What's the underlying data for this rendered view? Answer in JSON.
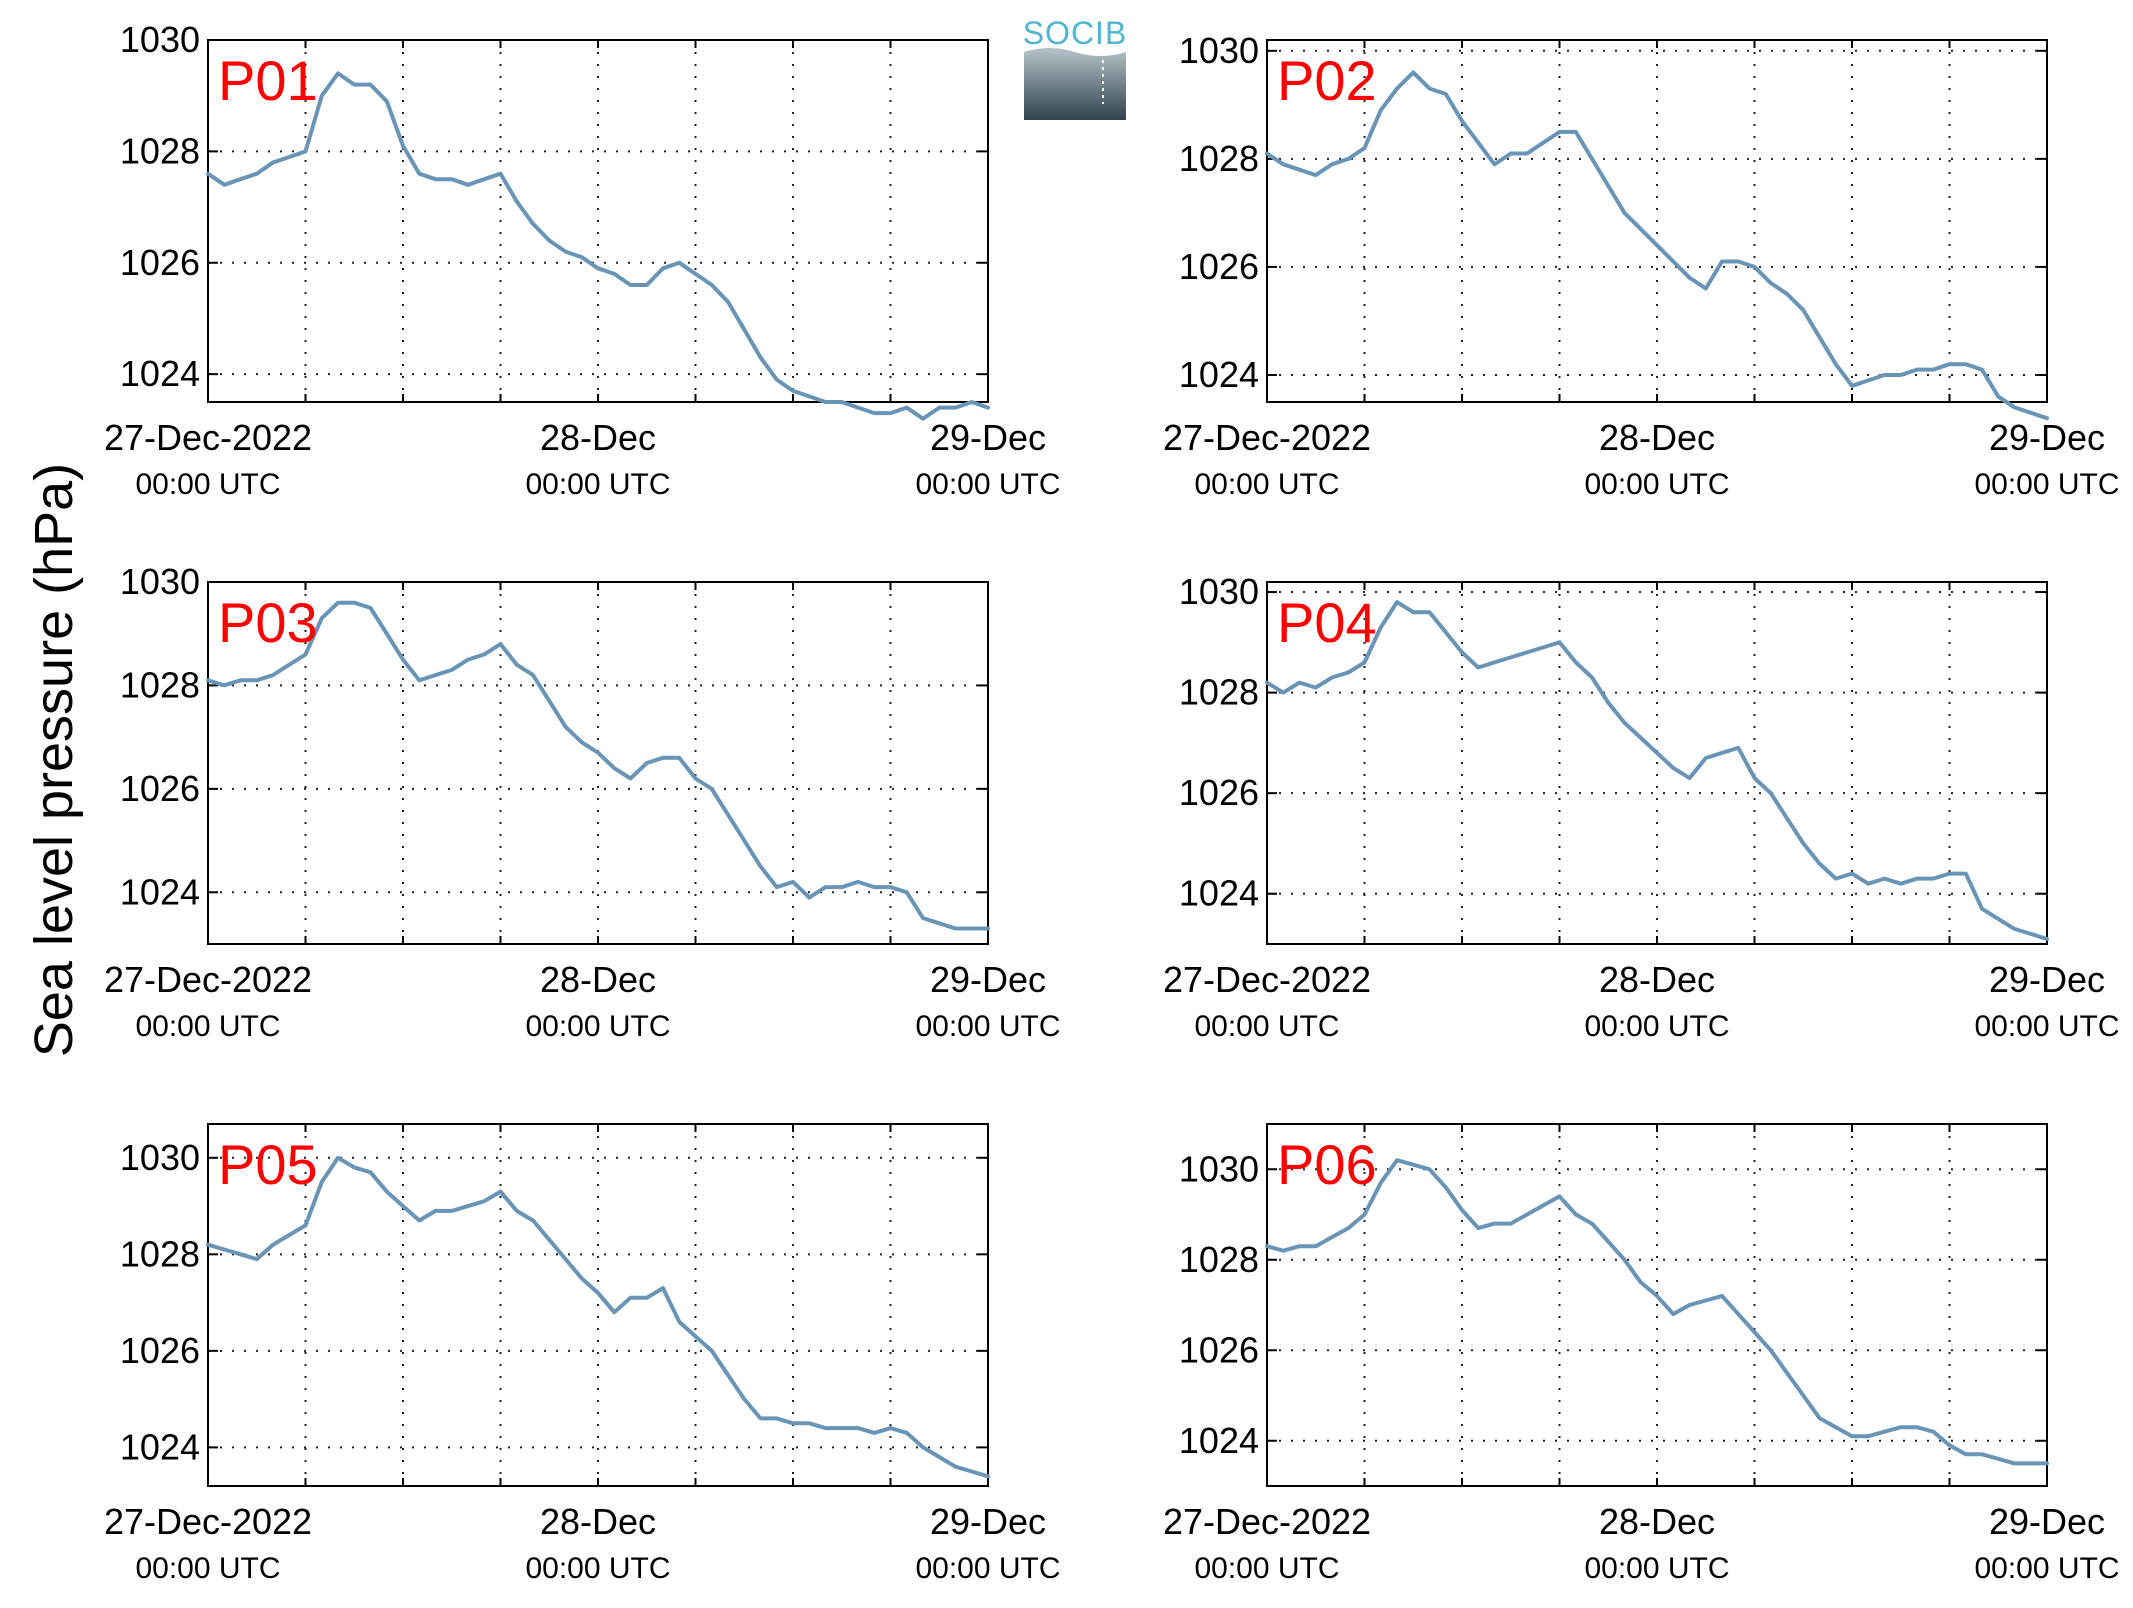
{
  "figure": {
    "ylabel": "Sea level pressure (hPa)",
    "logo_text": "SOCIB",
    "line_color": "#6a94b6",
    "label_color": "#ff0000",
    "x_axis": {
      "ticks": [
        0,
        24,
        48
      ],
      "tick_labels_top": [
        "27-Dec-2022",
        "28-Dec",
        "29-Dec"
      ],
      "tick_labels_bottom": [
        "00:00 UTC",
        "00:00 UTC",
        "00:00 UTC"
      ],
      "minor_grid_step_hours": 6,
      "range_hours": [
        0,
        48
      ]
    }
  },
  "chart_data": [
    {
      "type": "line",
      "title": "P01",
      "xlabel": "",
      "ylabel": "Sea level pressure (hPa)",
      "ylim": [
        1023.5,
        1030.0
      ],
      "yticks": [
        1024,
        1026,
        1028,
        1030
      ],
      "grid": true,
      "x": [
        0,
        1,
        2,
        3,
        4,
        5,
        6,
        7,
        8,
        9,
        10,
        11,
        12,
        13,
        14,
        15,
        16,
        17,
        18,
        19,
        20,
        21,
        22,
        23,
        24,
        25,
        26,
        27,
        28,
        29,
        30,
        31,
        32,
        33,
        34,
        35,
        36,
        37,
        38,
        39,
        40,
        41,
        42,
        43,
        44,
        45,
        46,
        47,
        48
      ],
      "series": [
        {
          "values": [
            1027.6,
            1027.4,
            1027.5,
            1027.6,
            1027.8,
            1027.9,
            1028.0,
            1029.0,
            1029.4,
            1029.2,
            1029.2,
            1028.9,
            1028.1,
            1027.6,
            1027.5,
            1027.5,
            1027.4,
            1027.5,
            1027.6,
            1027.1,
            1026.7,
            1026.4,
            1026.2,
            1026.1,
            1025.9,
            1025.8,
            1025.6,
            1025.6,
            1025.9,
            1026.0,
            1025.8,
            1025.6,
            1025.3,
            1024.8,
            1024.3,
            1023.9,
            1023.7,
            1023.6,
            1023.5,
            1023.5,
            1023.4,
            1023.3,
            1023.3,
            1023.4,
            1023.2,
            1023.4,
            1023.4,
            1023.5,
            1023.4
          ]
        }
      ]
    },
    {
      "type": "line",
      "title": "P02",
      "xlabel": "",
      "ylabel": "Sea level pressure (hPa)",
      "ylim": [
        1023.5,
        1030.2
      ],
      "yticks": [
        1024,
        1026,
        1028,
        1030
      ],
      "grid": true,
      "x": [
        0,
        1,
        2,
        3,
        4,
        5,
        6,
        7,
        8,
        9,
        10,
        11,
        12,
        13,
        14,
        15,
        16,
        17,
        18,
        19,
        20,
        21,
        22,
        23,
        24,
        25,
        26,
        27,
        28,
        29,
        30,
        31,
        32,
        33,
        34,
        35,
        36,
        37,
        38,
        39,
        40,
        41,
        42,
        43,
        44,
        45,
        46,
        47,
        48
      ],
      "series": [
        {
          "values": [
            1028.1,
            1027.9,
            1027.8,
            1027.7,
            1027.9,
            1028.0,
            1028.2,
            1028.9,
            1029.3,
            1029.6,
            1029.3,
            1029.2,
            1028.7,
            1028.3,
            1027.9,
            1028.1,
            1028.1,
            1028.3,
            1028.5,
            1028.5,
            1028.0,
            1027.5,
            1027.0,
            1026.7,
            1026.4,
            1026.1,
            1025.8,
            1025.6,
            1026.1,
            1026.1,
            1026.0,
            1025.7,
            1025.5,
            1025.2,
            1024.7,
            1024.2,
            1023.8,
            1023.9,
            1024.0,
            1024.0,
            1024.1,
            1024.1,
            1024.2,
            1024.2,
            1024.1,
            1023.6,
            1023.4,
            1023.3,
            1023.2
          ]
        }
      ]
    },
    {
      "type": "line",
      "title": "P03",
      "xlabel": "",
      "ylabel": "Sea level pressure (hPa)",
      "ylim": [
        1023.0,
        1030.0
      ],
      "yticks": [
        1024,
        1026,
        1028,
        1030
      ],
      "grid": true,
      "x": [
        0,
        1,
        2,
        3,
        4,
        5,
        6,
        7,
        8,
        9,
        10,
        11,
        12,
        13,
        14,
        15,
        16,
        17,
        18,
        19,
        20,
        21,
        22,
        23,
        24,
        25,
        26,
        27,
        28,
        29,
        30,
        31,
        32,
        33,
        34,
        35,
        36,
        37,
        38,
        39,
        40,
        41,
        42,
        43,
        44,
        45,
        46,
        47,
        48
      ],
      "series": [
        {
          "values": [
            1028.1,
            1028.0,
            1028.1,
            1028.1,
            1028.2,
            1028.4,
            1028.6,
            1029.3,
            1029.6,
            1029.6,
            1029.5,
            1029.0,
            1028.5,
            1028.1,
            1028.2,
            1028.3,
            1028.5,
            1028.6,
            1028.8,
            1028.4,
            1028.2,
            1027.7,
            1027.2,
            1026.9,
            1026.7,
            1026.4,
            1026.2,
            1026.5,
            1026.6,
            1026.6,
            1026.2,
            1026.0,
            1025.5,
            1025.0,
            1024.5,
            1024.1,
            1024.2,
            1023.9,
            1024.1,
            1024.1,
            1024.2,
            1024.1,
            1024.1,
            1024.0,
            1023.5,
            1023.4,
            1023.3,
            1023.3,
            1023.3
          ]
        }
      ]
    },
    {
      "type": "line",
      "title": "P04",
      "xlabel": "",
      "ylabel": "Sea level pressure (hPa)",
      "ylim": [
        1023.0,
        1030.2
      ],
      "yticks": [
        1024,
        1026,
        1028,
        1030
      ],
      "grid": true,
      "x": [
        0,
        1,
        2,
        3,
        4,
        5,
        6,
        7,
        8,
        9,
        10,
        11,
        12,
        13,
        14,
        15,
        16,
        17,
        18,
        19,
        20,
        21,
        22,
        23,
        24,
        25,
        26,
        27,
        28,
        29,
        30,
        31,
        32,
        33,
        34,
        35,
        36,
        37,
        38,
        39,
        40,
        41,
        42,
        43,
        44,
        45,
        46,
        47,
        48
      ],
      "series": [
        {
          "values": [
            1028.2,
            1028.0,
            1028.2,
            1028.1,
            1028.3,
            1028.4,
            1028.6,
            1029.3,
            1029.8,
            1029.6,
            1029.6,
            1029.2,
            1028.8,
            1028.5,
            1028.6,
            1028.7,
            1028.8,
            1028.9,
            1029.0,
            1028.6,
            1028.3,
            1027.8,
            1027.4,
            1027.1,
            1026.8,
            1026.5,
            1026.3,
            1026.7,
            1026.8,
            1026.9,
            1026.3,
            1026.0,
            1025.5,
            1025.0,
            1024.6,
            1024.3,
            1024.4,
            1024.2,
            1024.3,
            1024.2,
            1024.3,
            1024.3,
            1024.4,
            1024.4,
            1023.7,
            1023.5,
            1023.3,
            1023.2,
            1023.1
          ]
        }
      ]
    },
    {
      "type": "line",
      "title": "P05",
      "xlabel": "",
      "ylabel": "Sea level pressure (hPa)",
      "ylim": [
        1023.2,
        1030.7
      ],
      "yticks": [
        1024,
        1026,
        1028,
        1030
      ],
      "grid": true,
      "x": [
        0,
        1,
        2,
        3,
        4,
        5,
        6,
        7,
        8,
        9,
        10,
        11,
        12,
        13,
        14,
        15,
        16,
        17,
        18,
        19,
        20,
        21,
        22,
        23,
        24,
        25,
        26,
        27,
        28,
        29,
        30,
        31,
        32,
        33,
        34,
        35,
        36,
        37,
        38,
        39,
        40,
        41,
        42,
        43,
        44,
        45,
        46,
        47,
        48
      ],
      "series": [
        {
          "values": [
            1028.2,
            1028.1,
            1028.0,
            1027.9,
            1028.2,
            1028.4,
            1028.6,
            1029.5,
            1030.0,
            1029.8,
            1029.7,
            1029.3,
            1029.0,
            1028.7,
            1028.9,
            1028.9,
            1029.0,
            1029.1,
            1029.3,
            1028.9,
            1028.7,
            1028.3,
            1027.9,
            1027.5,
            1027.2,
            1026.8,
            1027.1,
            1027.1,
            1027.3,
            1026.6,
            1026.3,
            1026.0,
            1025.5,
            1025.0,
            1024.6,
            1024.6,
            1024.5,
            1024.5,
            1024.4,
            1024.4,
            1024.4,
            1024.3,
            1024.4,
            1024.3,
            1024.0,
            1023.8,
            1023.6,
            1023.5,
            1023.4
          ]
        }
      ]
    },
    {
      "type": "line",
      "title": "P06",
      "xlabel": "",
      "ylabel": "Sea level pressure (hPa)",
      "ylim": [
        1023.0,
        1031.0
      ],
      "yticks": [
        1024,
        1026,
        1028,
        1030
      ],
      "grid": true,
      "x": [
        0,
        1,
        2,
        3,
        4,
        5,
        6,
        7,
        8,
        9,
        10,
        11,
        12,
        13,
        14,
        15,
        16,
        17,
        18,
        19,
        20,
        21,
        22,
        23,
        24,
        25,
        26,
        27,
        28,
        29,
        30,
        31,
        32,
        33,
        34,
        35,
        36,
        37,
        38,
        39,
        40,
        41,
        42,
        43,
        44,
        45,
        46,
        47,
        48
      ],
      "series": [
        {
          "values": [
            1028.3,
            1028.2,
            1028.3,
            1028.3,
            1028.5,
            1028.7,
            1029.0,
            1029.7,
            1030.2,
            1030.1,
            1030.0,
            1029.6,
            1029.1,
            1028.7,
            1028.8,
            1028.8,
            1029.0,
            1029.2,
            1029.4,
            1029.0,
            1028.8,
            1028.4,
            1028.0,
            1027.5,
            1027.2,
            1026.8,
            1027.0,
            1027.1,
            1027.2,
            1026.8,
            1026.4,
            1026.0,
            1025.5,
            1025.0,
            1024.5,
            1024.3,
            1024.1,
            1024.1,
            1024.2,
            1024.3,
            1024.3,
            1024.2,
            1023.9,
            1023.7,
            1023.7,
            1023.6,
            1023.5,
            1023.5,
            1023.5
          ]
        }
      ]
    }
  ]
}
